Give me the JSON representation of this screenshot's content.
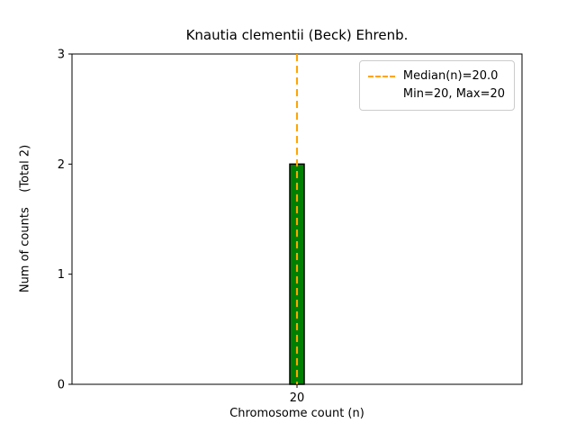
{
  "chart_data": {
    "type": "bar",
    "title": "Knautia clementii (Beck) Ehrenb.",
    "xlabel": "Chromosome count (n)",
    "ylabel": "Num of counts    (Total 2)",
    "categories": [
      "20"
    ],
    "values": [
      2
    ],
    "total_counts": 2,
    "median": 20.0,
    "min": 20,
    "max": 20,
    "ylim": [
      0,
      3
    ],
    "yticks": [
      0,
      1,
      2,
      3
    ],
    "xticks": [
      "20"
    ],
    "grid": false,
    "legend_position": "upper right",
    "bar_fill": "#008000",
    "bar_edge": "#000000",
    "median_line_color": "#ffa500",
    "axis_color": "#000000",
    "legend": [
      "Median(n)=20.0",
      "Min=20, Max=20"
    ]
  }
}
